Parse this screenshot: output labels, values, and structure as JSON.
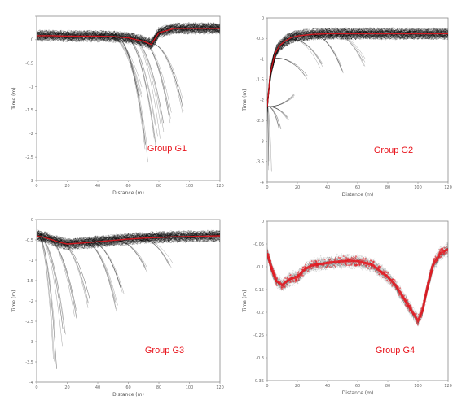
{
  "colors": {
    "mean_curve": "#e8141c",
    "label": "#e8141c",
    "traces": "#000000",
    "axis": "#8a8a8a"
  },
  "chart_data": [
    {
      "type": "line",
      "panel": "top-left",
      "annotation": "Group G1",
      "xlabel": "Distance (m)",
      "ylabel": "Time (m)",
      "xlim": [
        0,
        120
      ],
      "ylim": [
        -3.3,
        0.5
      ],
      "x_ticks": [
        "0",
        "20",
        "40",
        "60",
        "80",
        "100",
        "120"
      ],
      "y_ticks": [
        "",
        "0",
        "-0.5",
        "-1",
        "-1.5",
        "-2",
        "-2.5",
        "-3"
      ],
      "mean_curve": {
        "x": [
          0,
          10,
          20,
          30,
          40,
          50,
          60,
          70,
          75,
          80,
          90,
          100,
          110,
          120
        ],
        "y": [
          0.05,
          0.05,
          0.04,
          0.04,
          0.04,
          0.03,
          0.0,
          -0.08,
          -0.15,
          0.12,
          0.22,
          0.22,
          0.22,
          0.22
        ]
      },
      "deep_troughs": [
        [
          72,
          -3.0
        ],
        [
          82,
          -2.4
        ],
        [
          88,
          -2.1
        ],
        [
          95,
          -1.8
        ],
        [
          78,
          -2.7
        ],
        [
          68,
          -1.4
        ]
      ]
    },
    {
      "type": "line",
      "panel": "top-right",
      "annotation": "Group G2",
      "xlabel": "Distance (m)",
      "ylabel": "Time (m)",
      "xlim": [
        0,
        120
      ],
      "ylim": [
        -4.5,
        0.5
      ],
      "x_ticks": [
        "0",
        "20",
        "40",
        "60",
        "80",
        "100",
        "120"
      ],
      "y_ticks": [
        "0",
        "-0.5",
        "-1",
        "-1.5",
        "-2",
        "-2.5",
        "-3",
        "-3.5",
        "-4"
      ],
      "mean_curve": {
        "x": [
          0,
          2,
          5,
          8,
          12,
          16,
          20,
          30,
          40,
          60,
          80,
          100,
          120
        ],
        "y": [
          -2.2,
          -1.2,
          -0.6,
          -0.35,
          -0.2,
          -0.1,
          -0.05,
          0.0,
          0.02,
          0.02,
          0.02,
          0.02,
          0.02
        ]
      },
      "deep_troughs": [
        [
          2,
          -4.2
        ],
        [
          8,
          -2.9
        ],
        [
          14,
          -2.6
        ],
        [
          18,
          -1.8
        ],
        [
          26,
          -1.4
        ],
        [
          36,
          -1.1
        ],
        [
          50,
          -1.2
        ],
        [
          64,
          -1.0
        ]
      ]
    },
    {
      "type": "line",
      "panel": "bottom-left",
      "annotation": "Group G3",
      "xlabel": "Distance (m)",
      "ylabel": "Time (m)",
      "xlim": [
        0,
        120
      ],
      "ylim": [
        -4.5,
        0.5
      ],
      "x_ticks": [
        "0",
        "20",
        "40",
        "60",
        "80",
        "100",
        "120"
      ],
      "y_ticks": [
        "0",
        "-0.5",
        "-1",
        "-1.5",
        "-2",
        "-2.5",
        "-3",
        "-3.5",
        "-4"
      ],
      "mean_curve": {
        "x": [
          0,
          5,
          10,
          15,
          20,
          30,
          40,
          50,
          60,
          70,
          80,
          90,
          100,
          110,
          120
        ],
        "y": [
          0.0,
          -0.05,
          -0.12,
          -0.2,
          -0.25,
          -0.22,
          -0.18,
          -0.14,
          -0.1,
          -0.07,
          -0.05,
          -0.03,
          -0.02,
          -0.01,
          0.0
        ]
      },
      "deep_troughs": [
        [
          12,
          -4.1
        ],
        [
          18,
          -3.6
        ],
        [
          26,
          -2.9
        ],
        [
          34,
          -2.4
        ],
        [
          52,
          -2.6
        ],
        [
          56,
          -1.8
        ],
        [
          72,
          -1.2
        ],
        [
          88,
          -1.0
        ]
      ]
    },
    {
      "type": "line",
      "panel": "bottom-right",
      "annotation": "Group G4",
      "xlabel": "Distance (m)",
      "ylabel": "Time (m)",
      "xlim": [
        0,
        120
      ],
      "ylim": [
        -0.35,
        0.05
      ],
      "x_ticks": [
        "0",
        "20",
        "40",
        "60",
        "80",
        "100",
        "120"
      ],
      "y_ticks": [
        "0",
        "-0.05",
        "-0.1",
        "-0.15",
        "-0.2",
        "-0.25",
        "-0.3",
        "-0.35"
      ],
      "mean_curve": {
        "x": [
          0,
          3,
          6,
          10,
          15,
          20,
          25,
          30,
          40,
          50,
          60,
          70,
          80,
          85,
          90,
          95,
          100,
          103,
          106,
          110,
          115,
          120
        ],
        "y": [
          -0.03,
          -0.07,
          -0.1,
          -0.11,
          -0.095,
          -0.09,
          -0.07,
          -0.06,
          -0.055,
          -0.05,
          -0.05,
          -0.06,
          -0.09,
          -0.11,
          -0.14,
          -0.17,
          -0.2,
          -0.175,
          -0.12,
          -0.06,
          -0.03,
          -0.02
        ]
      }
    }
  ]
}
